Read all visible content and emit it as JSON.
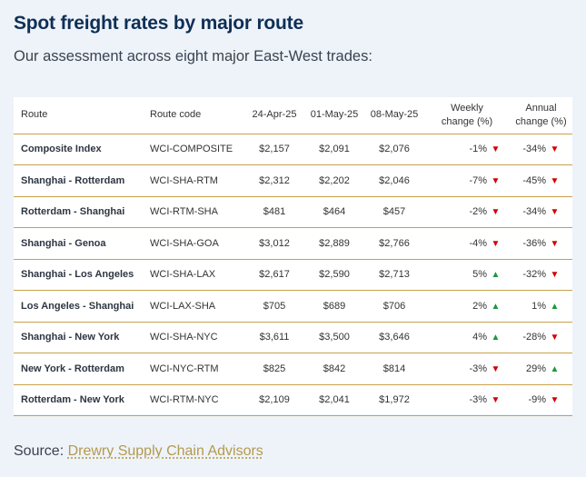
{
  "title": "Spot freight rates by major route",
  "subtitle": "Our assessment across eight major East-West trades:",
  "colors": {
    "accent": "#c8a24a",
    "title": "#0e2f56",
    "down": "#d40000",
    "up": "#1a9a3a",
    "background": "#eef3f9"
  },
  "table": {
    "headers": {
      "route": "Route",
      "code": "Route code",
      "d1": "24-Apr-25",
      "d2": "01-May-25",
      "d3": "08-May-25",
      "weekly_l1": "Weekly",
      "weekly_l2": "change (%)",
      "annual_l1": "Annual",
      "annual_l2": "change (%)"
    },
    "rows": [
      {
        "route": "Composite Index",
        "code": "WCI-COMPOSITE",
        "d1": "$2,157",
        "d2": "$2,091",
        "d3": "$2,076",
        "weekly": "-1%",
        "weekly_dir": "down",
        "annual": "-34%",
        "annual_dir": "down"
      },
      {
        "route": "Shanghai - Rotterdam",
        "code": "WCI-SHA-RTM",
        "d1": "$2,312",
        "d2": "$2,202",
        "d3": "$2,046",
        "weekly": "-7%",
        "weekly_dir": "down",
        "annual": "-45%",
        "annual_dir": "down"
      },
      {
        "route": "Rotterdam - Shanghai",
        "code": "WCI-RTM-SHA",
        "d1": "$481",
        "d2": "$464",
        "d3": "$457",
        "weekly": "-2%",
        "weekly_dir": "down",
        "annual": "-34%",
        "annual_dir": "down"
      },
      {
        "route": "Shanghai - Genoa",
        "code": "WCI-SHA-GOA",
        "d1": "$3,012",
        "d2": "$2,889",
        "d3": "$2,766",
        "weekly": "-4%",
        "weekly_dir": "down",
        "annual": "-36%",
        "annual_dir": "down"
      },
      {
        "route": "Shanghai - Los Angeles",
        "code": "WCI-SHA-LAX",
        "d1": "$2,617",
        "d2": "$2,590",
        "d3": "$2,713",
        "weekly": "5%",
        "weekly_dir": "up",
        "annual": "-32%",
        "annual_dir": "down"
      },
      {
        "route": "Los Angeles - Shanghai",
        "code": "WCI-LAX-SHA",
        "d1": "$705",
        "d2": "$689",
        "d3": "$706",
        "weekly": "2%",
        "weekly_dir": "up",
        "annual": "1%",
        "annual_dir": "up"
      },
      {
        "route": "Shanghai - New York",
        "code": "WCI-SHA-NYC",
        "d1": "$3,611",
        "d2": "$3,500",
        "d3": "$3,646",
        "weekly": "4%",
        "weekly_dir": "up",
        "annual": "-28%",
        "annual_dir": "down"
      },
      {
        "route": "New York - Rotterdam",
        "code": "WCI-NYC-RTM",
        "d1": "$825",
        "d2": "$842",
        "d3": "$814",
        "weekly": "-3%",
        "weekly_dir": "down",
        "annual": "29%",
        "annual_dir": "up"
      },
      {
        "route": "Rotterdam - New York",
        "code": "WCI-RTM-NYC",
        "d1": "$2,109",
        "d2": "$2,041",
        "d3": "$1,972",
        "weekly": "-3%",
        "weekly_dir": "down",
        "annual": "-9%",
        "annual_dir": "down"
      }
    ]
  },
  "source": {
    "label": "Source:",
    "link": "Drewry Supply Chain Advisors"
  }
}
